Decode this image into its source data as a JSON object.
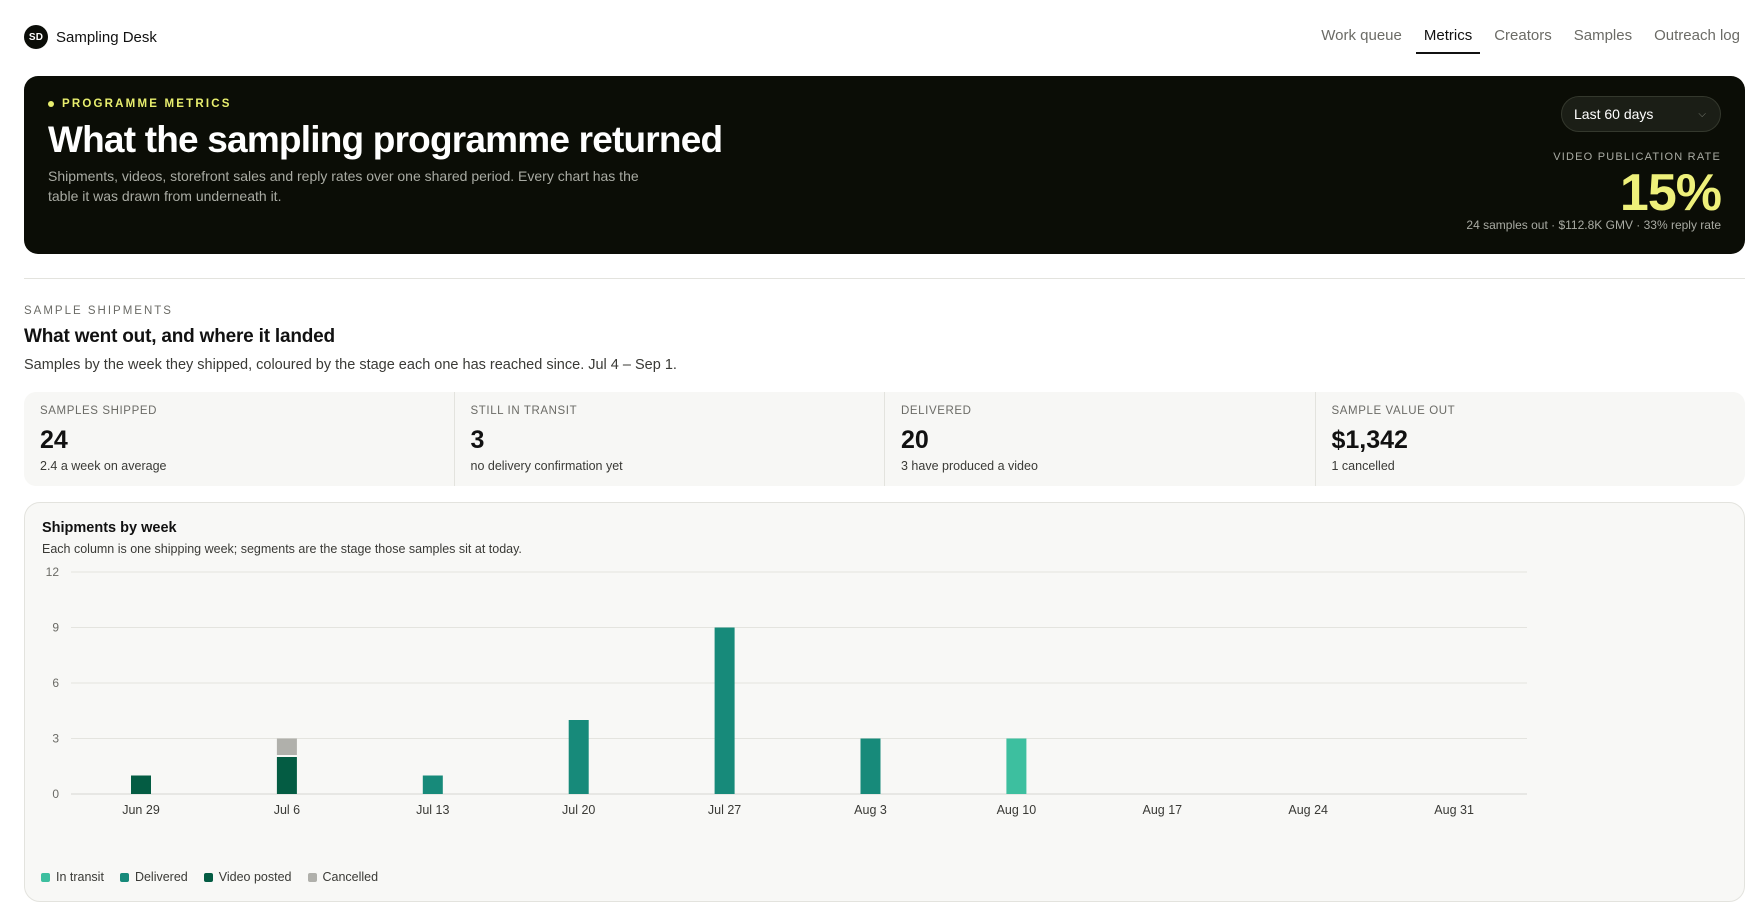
{
  "brand": {
    "badge": "SD",
    "name": "Sampling Desk"
  },
  "nav": [
    {
      "label": "Work queue",
      "active": false
    },
    {
      "label": "Metrics",
      "active": true
    },
    {
      "label": "Creators",
      "active": false
    },
    {
      "label": "Samples",
      "active": false
    },
    {
      "label": "Outreach log",
      "active": false
    }
  ],
  "hero": {
    "eyebrow": "PROGRAMME METRICS",
    "title": "What the sampling programme returned",
    "subtitle": "Shipments, videos, storefront sales and reply rates over one shared period. Every chart has the table it was drawn from underneath it.",
    "range": "Last 60 days",
    "rate_label": "VIDEO PUBLICATION RATE",
    "rate_value": "15%",
    "rate_foot": "24 samples out · $112.8K GMV · 33% reply rate"
  },
  "section": {
    "eyebrow": "SAMPLE SHIPMENTS",
    "title": "What went out, and where it landed",
    "subtitle": "Samples by the week they shipped, coloured by the stage each one has reached since. Jul 4 – Sep 1."
  },
  "kpis": [
    {
      "label": "SAMPLES SHIPPED",
      "value": "24",
      "note": "2.4 a week on average"
    },
    {
      "label": "STILL IN TRANSIT",
      "value": "3",
      "note": "no delivery confirmation yet"
    },
    {
      "label": "DELIVERED",
      "value": "20",
      "note": "3 have produced a video"
    },
    {
      "label": "SAMPLE VALUE OUT",
      "value": "$1,342",
      "note": "1 cancelled"
    }
  ],
  "chart": {
    "title": "Shipments by week",
    "subtitle": "Each column is one shipping week; segments are the stage those samples sit at today."
  },
  "chart_data": {
    "type": "bar",
    "stacked": true,
    "categories": [
      "Jun 29",
      "Jul 6",
      "Jul 13",
      "Jul 20",
      "Jul 27",
      "Aug 3",
      "Aug 10",
      "Aug 17",
      "Aug 24",
      "Aug 31"
    ],
    "series": [
      {
        "name": "In transit",
        "color": "#3dbf9f",
        "values": [
          0,
          0,
          0,
          0,
          0,
          0,
          3,
          0,
          0,
          0
        ]
      },
      {
        "name": "Delivered",
        "color": "#178a7a",
        "values": [
          0,
          0,
          1,
          4,
          9,
          3,
          0,
          0,
          0,
          0
        ]
      },
      {
        "name": "Video posted",
        "color": "#045c43",
        "values": [
          1,
          2,
          0,
          0,
          0,
          0,
          0,
          0,
          0,
          0
        ]
      },
      {
        "name": "Cancelled",
        "color": "#b0b0ab",
        "values": [
          0,
          1,
          0,
          0,
          0,
          0,
          0,
          0,
          0,
          0
        ]
      }
    ],
    "stack_order": [
      "Video posted",
      "Delivered",
      "In transit",
      "Cancelled"
    ],
    "yticks": [
      0,
      3,
      6,
      9,
      12
    ],
    "ylim": [
      0,
      12
    ],
    "grid": true,
    "legend": "bottom-left"
  }
}
